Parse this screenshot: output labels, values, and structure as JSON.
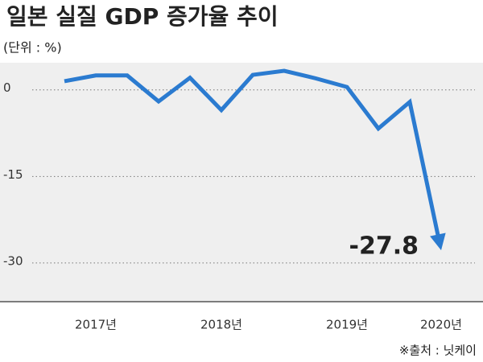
{
  "chart_data": {
    "type": "line",
    "title": "일본 실질 GDP 증가율 추이",
    "subtitle": "(단위 : %)",
    "categories": [
      null,
      "2017년",
      null,
      null,
      null,
      "2018년",
      null,
      null,
      null,
      "2019년",
      null,
      null,
      "2020년"
    ],
    "series": [
      {
        "name": "실질 GDP 증가율",
        "color": "#2b7bd0",
        "values": [
          1.5,
          2.5,
          2.5,
          -2.0,
          2.1,
          -3.5,
          2.6,
          3.3,
          2.0,
          0.5,
          -6.7,
          -2.1,
          -27.8
        ],
        "value_labels": [
          null,
          null,
          null,
          null,
          null,
          null,
          null,
          null,
          null,
          null,
          null,
          null,
          "-27.8"
        ]
      }
    ],
    "ylim": [
      -36.7,
      4.7
    ],
    "yticks": [
      0,
      -15,
      -30
    ],
    "grid": true,
    "source": "※출처 : 닛케이"
  }
}
